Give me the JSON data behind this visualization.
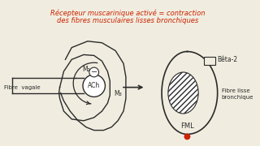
{
  "title_line1": "Récepteur muscarinique activé = contraction",
  "title_line2": "des fibres musculaires lisses bronchiques",
  "title_color": "#cc2200",
  "bg_color": "#f0ede0",
  "label_fibre_vagale": "Fibre  vagale",
  "label_ach": "ACh",
  "label_m2": "M₂",
  "label_m3": "M₃",
  "label_beta2": "Bêta-2",
  "label_fibre_lisse_1": "Fibre lisse",
  "label_fibre_lisse_2": "bronchique",
  "label_fml": "FML",
  "line_color": "#2a2a2a",
  "red_dot_color": "#cc2200"
}
